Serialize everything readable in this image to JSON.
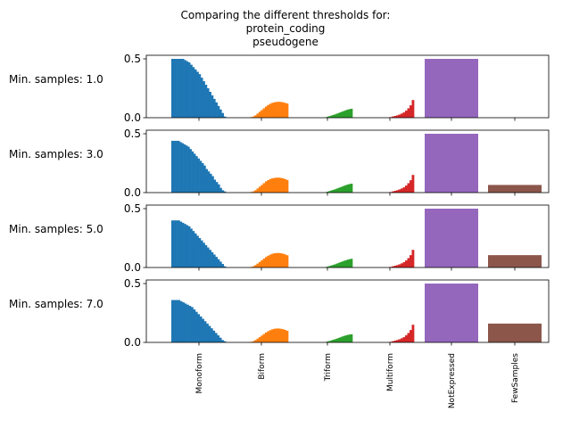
{
  "chart_data": {
    "type": "bar",
    "title": [
      "Comparing the different thresholds for:",
      "protein_coding",
      "pseudogene"
    ],
    "categories": [
      "Monoform",
      "Biform",
      "Triform",
      "Multiform",
      "NotExpressed",
      "FewSamples"
    ],
    "colors": [
      "#1f77b4",
      "#ff7f0e",
      "#2ca02c",
      "#d62728",
      "#9467bd",
      "#8c564b"
    ],
    "ylim": [
      0,
      0.5
    ],
    "yticks": [
      "0.0",
      "0.5"
    ],
    "panels": [
      {
        "label": "Min. samples: 1.0",
        "Monoform": [
          0.5,
          0.5,
          0.5,
          0.5,
          0.5,
          0.5,
          0.49,
          0.48,
          0.47,
          0.45,
          0.43,
          0.41,
          0.39,
          0.37,
          0.34,
          0.31,
          0.28,
          0.25,
          0.22,
          0.19,
          0.16,
          0.13,
          0.1,
          0.07,
          0.04,
          0.01
        ],
        "Biform": [
          0.0,
          0.005,
          0.01,
          0.02,
          0.035,
          0.05,
          0.065,
          0.08,
          0.095,
          0.108,
          0.118,
          0.126,
          0.131,
          0.134,
          0.135,
          0.134,
          0.131,
          0.126,
          0.12
        ],
        "Triform": [
          0.0,
          0.004,
          0.008,
          0.013,
          0.018,
          0.023,
          0.028,
          0.034,
          0.04,
          0.046,
          0.052,
          0.058,
          0.064,
          0.069,
          0.073,
          0.076
        ],
        "Multiform": [
          0.0,
          0.005,
          0.01,
          0.015,
          0.02,
          0.027,
          0.035,
          0.045,
          0.06,
          0.08,
          0.105,
          0.15
        ],
        "NotExpressed": 0.5,
        "FewSamples": 0.0
      },
      {
        "label": "Min. samples: 3.0",
        "Monoform": [
          0.44,
          0.44,
          0.44,
          0.44,
          0.43,
          0.42,
          0.41,
          0.4,
          0.39,
          0.37,
          0.35,
          0.33,
          0.31,
          0.29,
          0.27,
          0.25,
          0.23,
          0.2,
          0.18,
          0.16,
          0.14,
          0.11,
          0.09,
          0.07,
          0.04,
          0.02,
          0.01
        ],
        "Biform": [
          0.0,
          0.005,
          0.01,
          0.02,
          0.035,
          0.05,
          0.065,
          0.08,
          0.095,
          0.106,
          0.115,
          0.121,
          0.125,
          0.127,
          0.127,
          0.125,
          0.121,
          0.115,
          0.108
        ],
        "Triform": [
          0.0,
          0.004,
          0.008,
          0.013,
          0.018,
          0.023,
          0.028,
          0.034,
          0.04,
          0.046,
          0.052,
          0.058,
          0.064,
          0.069,
          0.073,
          0.076
        ],
        "Multiform": [
          0.0,
          0.005,
          0.01,
          0.015,
          0.02,
          0.027,
          0.035,
          0.045,
          0.06,
          0.08,
          0.105,
          0.15
        ],
        "NotExpressed": 0.5,
        "FewSamples": 0.065
      },
      {
        "label": "Min. samples: 5.0",
        "Monoform": [
          0.4,
          0.4,
          0.4,
          0.4,
          0.39,
          0.38,
          0.37,
          0.36,
          0.35,
          0.33,
          0.31,
          0.29,
          0.27,
          0.25,
          0.23,
          0.21,
          0.19,
          0.17,
          0.15,
          0.13,
          0.11,
          0.09,
          0.07,
          0.05,
          0.03,
          0.01
        ],
        "Biform": [
          0.0,
          0.005,
          0.01,
          0.02,
          0.033,
          0.047,
          0.061,
          0.075,
          0.089,
          0.1,
          0.109,
          0.116,
          0.121,
          0.123,
          0.123,
          0.121,
          0.117,
          0.111,
          0.104
        ],
        "Triform": [
          0.0,
          0.004,
          0.008,
          0.012,
          0.017,
          0.022,
          0.027,
          0.033,
          0.039,
          0.045,
          0.051,
          0.057,
          0.062,
          0.067,
          0.071,
          0.074
        ],
        "Multiform": [
          0.0,
          0.005,
          0.01,
          0.015,
          0.02,
          0.027,
          0.035,
          0.045,
          0.06,
          0.08,
          0.105,
          0.15
        ],
        "NotExpressed": 0.5,
        "FewSamples": 0.105
      },
      {
        "label": "Min. samples: 7.0",
        "Monoform": [
          0.36,
          0.36,
          0.36,
          0.36,
          0.35,
          0.34,
          0.33,
          0.32,
          0.31,
          0.3,
          0.28,
          0.26,
          0.24,
          0.22,
          0.2,
          0.18,
          0.16,
          0.14,
          0.12,
          0.1,
          0.08,
          0.06,
          0.04,
          0.02,
          0.01
        ],
        "Biform": [
          0.0,
          0.005,
          0.01,
          0.02,
          0.032,
          0.045,
          0.058,
          0.071,
          0.084,
          0.095,
          0.104,
          0.111,
          0.116,
          0.118,
          0.118,
          0.116,
          0.112,
          0.106,
          0.099
        ],
        "Triform": [
          0.0,
          0.004,
          0.008,
          0.012,
          0.017,
          0.022,
          0.027,
          0.032,
          0.038,
          0.044,
          0.05,
          0.055,
          0.06,
          0.064,
          0.067,
          0.069
        ],
        "Multiform": [
          0.0,
          0.005,
          0.01,
          0.015,
          0.02,
          0.027,
          0.035,
          0.045,
          0.06,
          0.08,
          0.105,
          0.15
        ],
        "NotExpressed": 0.5,
        "FewSamples": 0.16
      }
    ]
  }
}
